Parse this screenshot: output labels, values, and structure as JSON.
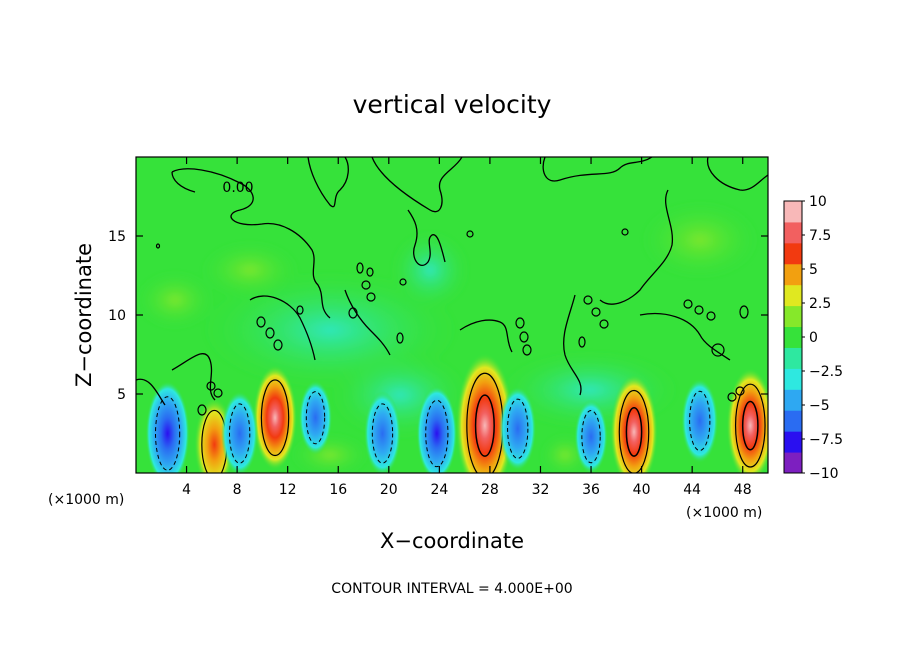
{
  "chart_data": {
    "type": "heatmap",
    "title": "vertical velocity",
    "xlabel": "X−coordinate",
    "ylabel": "Z−coordinate",
    "x_unit_left": "(×1000 m)",
    "x_unit_right": "(×1000 m)",
    "xlim": [
      0,
      50
    ],
    "ylim": [
      0,
      20
    ],
    "x_ticks": [
      {
        "value": 4,
        "label": "4"
      },
      {
        "value": 8,
        "label": "8"
      },
      {
        "value": 12,
        "label": "12"
      },
      {
        "value": 16,
        "label": "16"
      },
      {
        "value": 20,
        "label": "20"
      },
      {
        "value": 24,
        "label": "24"
      },
      {
        "value": 28,
        "label": "28"
      },
      {
        "value": 32,
        "label": "32"
      },
      {
        "value": 36,
        "label": "36"
      },
      {
        "value": 40,
        "label": "40"
      },
      {
        "value": 44,
        "label": "44"
      },
      {
        "value": 48,
        "label": "48"
      }
    ],
    "y_ticks": [
      {
        "value": 5,
        "label": "5"
      },
      {
        "value": 10,
        "label": "10"
      },
      {
        "value": 15,
        "label": "15"
      }
    ],
    "colorbar": {
      "range": [
        -10,
        10
      ],
      "labels": [
        {
          "value": 10,
          "label": "10"
        },
        {
          "value": 7.5,
          "label": "7.5"
        },
        {
          "value": 5,
          "label": "5"
        },
        {
          "value": 2.5,
          "label": "2.5"
        },
        {
          "value": 0,
          "label": "0"
        },
        {
          "value": -2.5,
          "label": "−2.5"
        },
        {
          "value": -5,
          "label": "−5"
        },
        {
          "value": -7.5,
          "label": "−7.5"
        },
        {
          "value": -10,
          "label": "−10"
        }
      ],
      "colors": [
        "#7d1fc0",
        "#2a0ff0",
        "#2a6cf2",
        "#2ea8f2",
        "#2ee8e0",
        "#2ee8a0",
        "#36e23a",
        "#86e82a",
        "#e0e820",
        "#f2a010",
        "#f23a10",
        "#f26060",
        "#f8b8b8"
      ]
    },
    "contour_label": "0.00",
    "contour_interval_text": "CONTOUR INTERVAL =  4.000E+00",
    "features": [
      {
        "kind": "updraft",
        "x": 11,
        "z": 3.5,
        "w": 6
      },
      {
        "kind": "updraft",
        "x": 6.2,
        "z": 1.8,
        "w": 5
      },
      {
        "kind": "updraft",
        "x": 27.6,
        "z": 3,
        "w": 10
      },
      {
        "kind": "updraft",
        "x": 39.4,
        "z": 2.6,
        "w": 7
      },
      {
        "kind": "updraft",
        "x": 48.6,
        "z": 3,
        "w": 7
      },
      {
        "kind": "downdraft",
        "x": 2.5,
        "z": 2.5,
        "w": -6
      },
      {
        "kind": "downdraft",
        "x": 8.2,
        "z": 2.5,
        "w": -4
      },
      {
        "kind": "downdraft",
        "x": 14.2,
        "z": 3.5,
        "w": -3
      },
      {
        "kind": "downdraft",
        "x": 19.5,
        "z": 2.5,
        "w": -4
      },
      {
        "kind": "downdraft",
        "x": 23.8,
        "z": 2.5,
        "w": -5
      },
      {
        "kind": "downdraft",
        "x": 30.2,
        "z": 2.8,
        "w": -4
      },
      {
        "kind": "downdraft",
        "x": 36,
        "z": 2.3,
        "w": -3
      },
      {
        "kind": "downdraft",
        "x": 44.6,
        "z": 3.3,
        "w": -4
      }
    ]
  }
}
